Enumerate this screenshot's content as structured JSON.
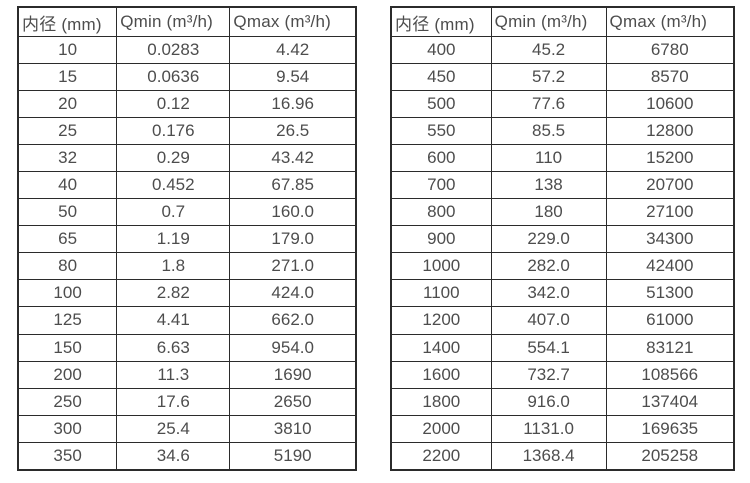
{
  "page": {
    "background": "#ffffff",
    "border_color": "#2b2b2b",
    "text_color": "#4d4d4d"
  },
  "tables": [
    {
      "name": "flow-table-small-diameters",
      "headers": [
        "内径 (mm)",
        "Qmin (m³/h)",
        "Qmax (m³/h)"
      ],
      "rows": [
        [
          "10",
          "0.0283",
          "4.42"
        ],
        [
          "15",
          "0.0636",
          "9.54"
        ],
        [
          "20",
          "0.12",
          "16.96"
        ],
        [
          "25",
          "0.176",
          "26.5"
        ],
        [
          "32",
          "0.29",
          "43.42"
        ],
        [
          "40",
          "0.452",
          "67.85"
        ],
        [
          "50",
          "0.7",
          "160.0"
        ],
        [
          "65",
          "1.19",
          "179.0"
        ],
        [
          "80",
          "1.8",
          "271.0"
        ],
        [
          "100",
          "2.82",
          "424.0"
        ],
        [
          "125",
          "4.41",
          "662.0"
        ],
        [
          "150",
          "6.63",
          "954.0"
        ],
        [
          "200",
          "11.3",
          "1690"
        ],
        [
          "250",
          "17.6",
          "2650"
        ],
        [
          "300",
          "25.4",
          "3810"
        ],
        [
          "350",
          "34.6",
          "5190"
        ]
      ]
    },
    {
      "name": "flow-table-large-diameters",
      "headers": [
        "内径 (mm)",
        "Qmin (m³/h)",
        "Qmax (m³/h)"
      ],
      "rows": [
        [
          "400",
          "45.2",
          "6780"
        ],
        [
          "450",
          "57.2",
          "8570"
        ],
        [
          "500",
          "77.6",
          "10600"
        ],
        [
          "550",
          "85.5",
          "12800"
        ],
        [
          "600",
          "110",
          "15200"
        ],
        [
          "700",
          "138",
          "20700"
        ],
        [
          "800",
          "180",
          "27100"
        ],
        [
          "900",
          "229.0",
          "34300"
        ],
        [
          "1000",
          "282.0",
          "42400"
        ],
        [
          "1100",
          "342.0",
          "51300"
        ],
        [
          "1200",
          "407.0",
          "61000"
        ],
        [
          "1400",
          "554.1",
          "83121"
        ],
        [
          "1600",
          "732.7",
          "108566"
        ],
        [
          "1800",
          "916.0",
          "137404"
        ],
        [
          "2000",
          "1131.0",
          "169635"
        ],
        [
          "2200",
          "1368.4",
          "205258"
        ]
      ]
    }
  ]
}
